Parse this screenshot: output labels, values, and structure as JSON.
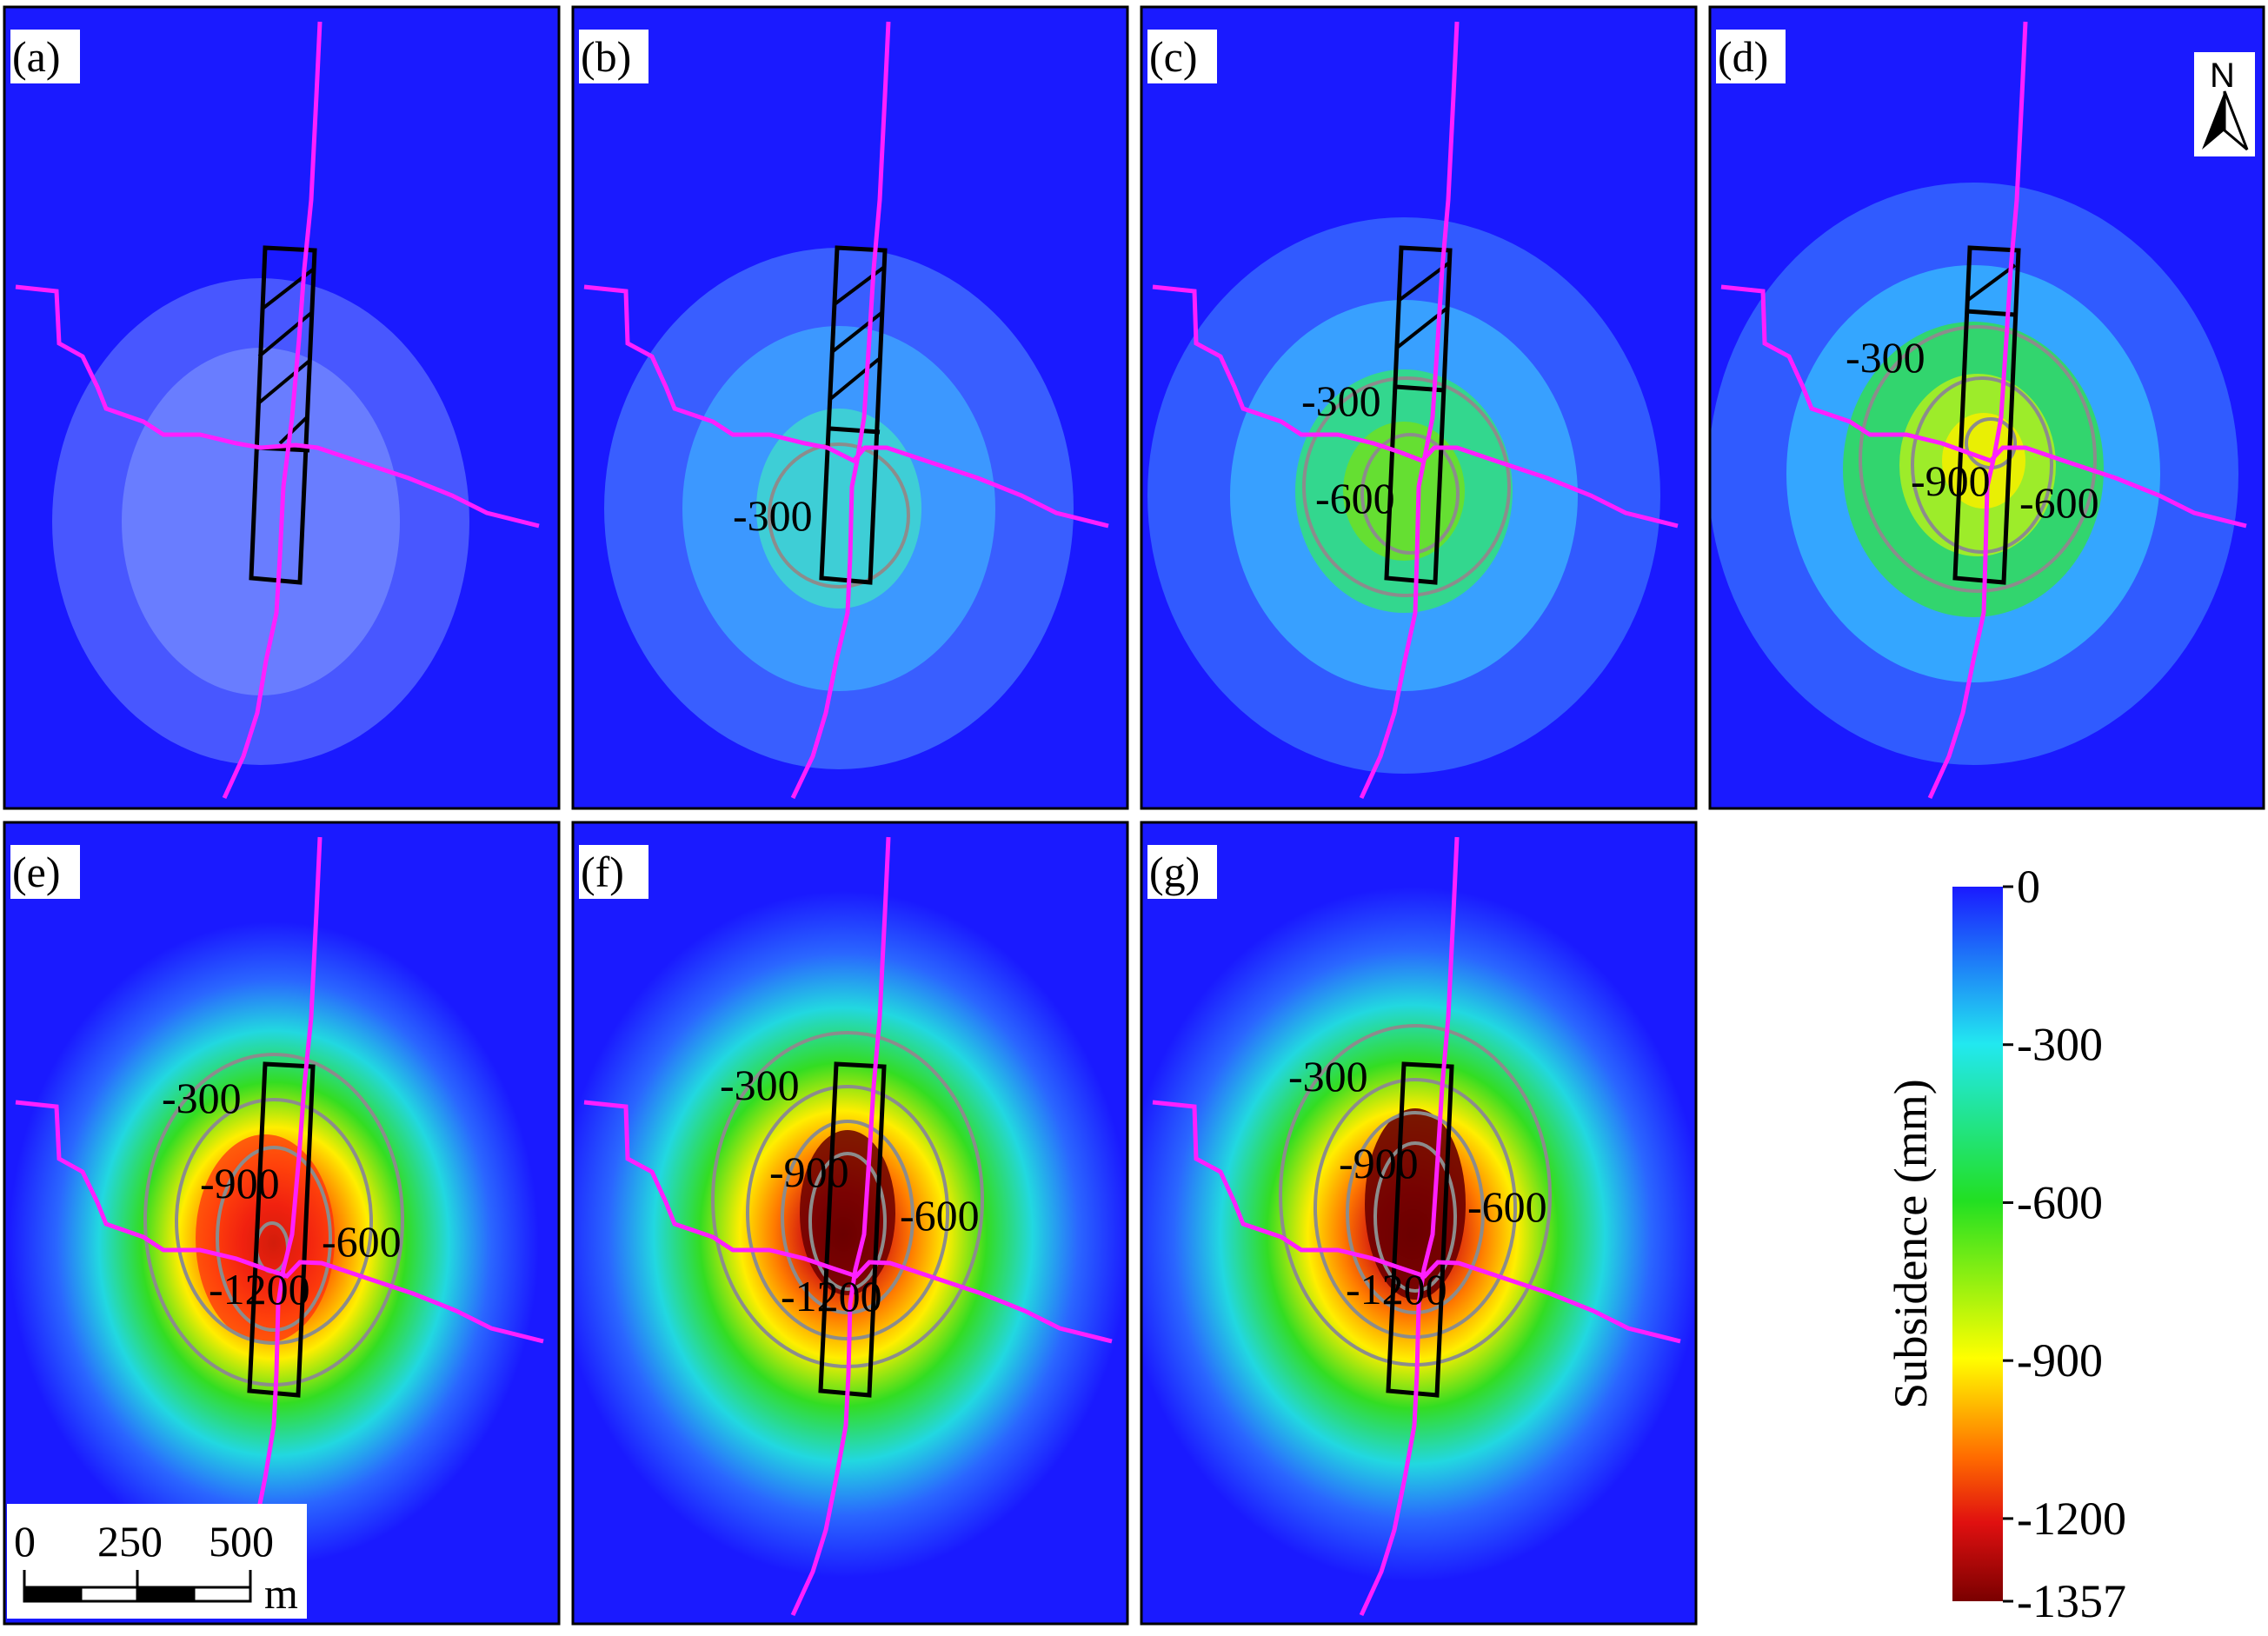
{
  "chart_data": [
    {
      "type": "heatmap",
      "panel_label": "(a)",
      "contour_labels": []
    },
    {
      "type": "heatmap",
      "panel_label": "(b)",
      "contour_labels": [
        "-300"
      ]
    },
    {
      "type": "heatmap",
      "panel_label": "(c)",
      "contour_labels": [
        "-300",
        "-600"
      ]
    },
    {
      "type": "heatmap",
      "panel_label": "(d)",
      "contour_labels": [
        "-300",
        "-900",
        "-600"
      ]
    },
    {
      "type": "heatmap",
      "panel_label": "(e)",
      "contour_labels": [
        "-300",
        "-900",
        "-600",
        "-1200"
      ]
    },
    {
      "type": "heatmap",
      "panel_label": "(f)",
      "contour_labels": [
        "-300",
        "-900",
        "-600",
        "-1200"
      ]
    },
    {
      "type": "heatmap",
      "panel_label": "(g)",
      "contour_labels": [
        "-300",
        "-900",
        "-600",
        "-1200"
      ]
    }
  ],
  "colorbar": {
    "title": "Subsidence (mm)",
    "ticks": [
      "0",
      "-300",
      "-600",
      "-900",
      "-1200",
      "-1357"
    ],
    "min": -1357,
    "max": 0,
    "colors": [
      "#1a1aff",
      "#22e8f0",
      "#22e022",
      "#ffff00",
      "#ff6a00",
      "#e01010",
      "#7a0000"
    ]
  },
  "scale_bar": {
    "ticks": [
      "0",
      "250",
      "500"
    ],
    "unit": "m"
  },
  "north_arrow": {
    "label": "N"
  },
  "colors": {
    "line": "#ff1fff",
    "contour": "#8c8c8c",
    "outline": "#000000",
    "background": "#1a1aff"
  }
}
